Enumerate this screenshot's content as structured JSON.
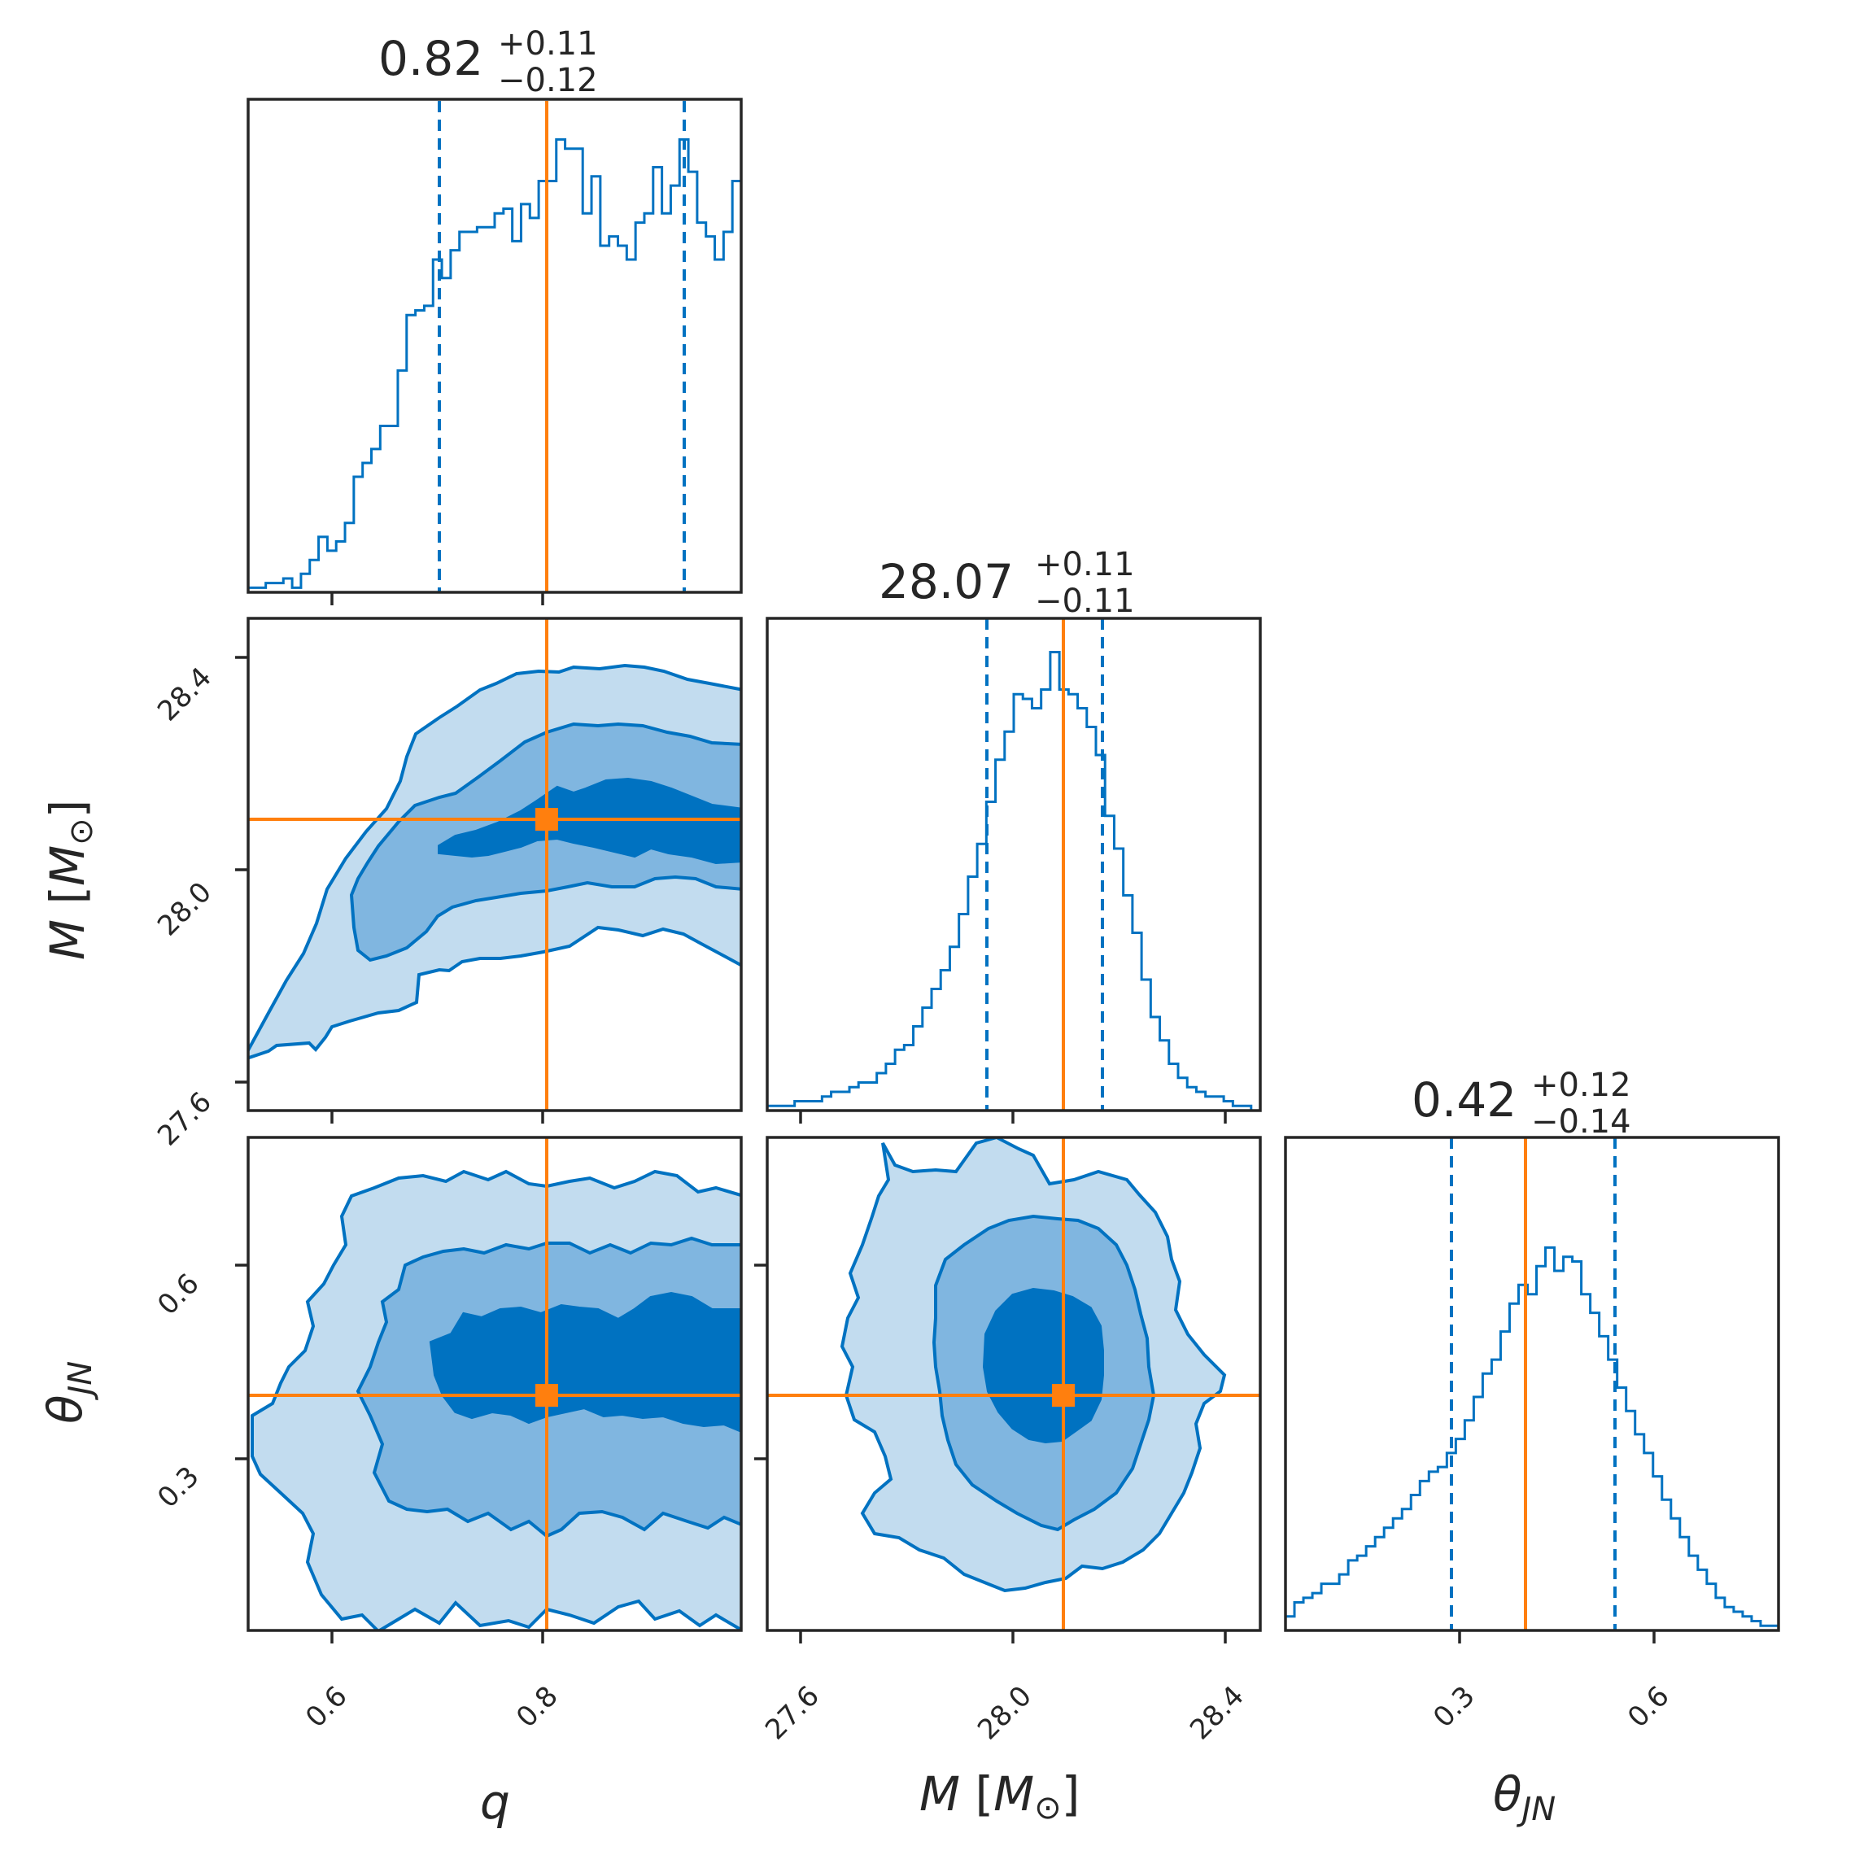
{
  "chart_data": {
    "type": "corner",
    "parameters": [
      {
        "key": "q",
        "label": "q",
        "range": [
          0.52,
          0.99
        ],
        "ticks": [
          0.6,
          0.8
        ],
        "tick_labels": [
          "0.6",
          "0.8"
        ],
        "truth": 0.805,
        "summary": {
          "median": "0.82",
          "plus": "+0.11",
          "minus": "−0.12"
        },
        "quantiles": [
          0.7,
          0.935
        ]
      },
      {
        "key": "M",
        "label": "M [M⊙]",
        "range": [
          27.53,
          28.46
        ],
        "ticks": [
          27.6,
          28.0,
          28.4
        ],
        "tick_labels": [
          "27.6",
          "28.0",
          "28.4"
        ],
        "truth": 28.09,
        "summary": {
          "median": "28.07",
          "plus": "+0.11",
          "minus": "−0.11"
        },
        "quantiles": [
          27.96,
          28.17
        ]
      },
      {
        "key": "theta_JN",
        "label": "θJN",
        "range": [
          0.04,
          0.8
        ],
        "ticks": [
          0.3,
          0.6
        ],
        "tick_labels": [
          "0.3",
          "0.6"
        ],
        "truth": 0.4,
        "summary": {
          "median": "0.42",
          "plus": "+0.12",
          "minus": "−0.14"
        },
        "quantiles": [
          0.285,
          0.535
        ]
      }
    ],
    "histograms": {
      "q": [
        0.01,
        0.01,
        0.02,
        0.02,
        0.03,
        0.01,
        0.04,
        0.07,
        0.12,
        0.09,
        0.11,
        0.15,
        0.25,
        0.28,
        0.31,
        0.36,
        0.36,
        0.48,
        0.6,
        0.61,
        0.62,
        0.72,
        0.68,
        0.74,
        0.78,
        0.78,
        0.79,
        0.79,
        0.82,
        0.83,
        0.76,
        0.84,
        0.81,
        0.89,
        0.89,
        0.98,
        0.96,
        0.96,
        0.82,
        0.9,
        0.75,
        0.77,
        0.75,
        0.72,
        0.8,
        0.82,
        0.92,
        0.82,
        0.88,
        0.98,
        0.91,
        0.8,
        0.77,
        0.72,
        0.78,
        0.89
      ],
      "M": [
        0.01,
        0.01,
        0.01,
        0.02,
        0.02,
        0.02,
        0.03,
        0.04,
        0.04,
        0.05,
        0.06,
        0.06,
        0.08,
        0.1,
        0.13,
        0.14,
        0.18,
        0.22,
        0.26,
        0.3,
        0.35,
        0.42,
        0.5,
        0.57,
        0.66,
        0.75,
        0.81,
        0.89,
        0.88,
        0.86,
        0.9,
        0.98,
        0.9,
        0.89,
        0.86,
        0.82,
        0.76,
        0.63,
        0.56,
        0.46,
        0.38,
        0.28,
        0.2,
        0.15,
        0.1,
        0.07,
        0.05,
        0.04,
        0.03,
        0.03,
        0.02,
        0.01,
        0.01,
        0.0
      ],
      "theta_JN": [
        0.03,
        0.06,
        0.07,
        0.08,
        0.1,
        0.1,
        0.12,
        0.15,
        0.16,
        0.18,
        0.2,
        0.22,
        0.24,
        0.26,
        0.29,
        0.32,
        0.34,
        0.35,
        0.38,
        0.41,
        0.45,
        0.5,
        0.55,
        0.58,
        0.64,
        0.7,
        0.74,
        0.72,
        0.78,
        0.82,
        0.77,
        0.8,
        0.79,
        0.72,
        0.68,
        0.63,
        0.58,
        0.52,
        0.47,
        0.42,
        0.38,
        0.33,
        0.28,
        0.24,
        0.2,
        0.16,
        0.13,
        0.1,
        0.07,
        0.05,
        0.04,
        0.03,
        0.02,
        0.01,
        0.01
      ]
    },
    "contour_levels": 3,
    "colors": {
      "posterior": "#0072c1",
      "truth": "#ff7f0e",
      "fill_light": "#c2dcef",
      "fill_mid": "#80b6e0",
      "fill_dark": "#0072c1"
    }
  }
}
